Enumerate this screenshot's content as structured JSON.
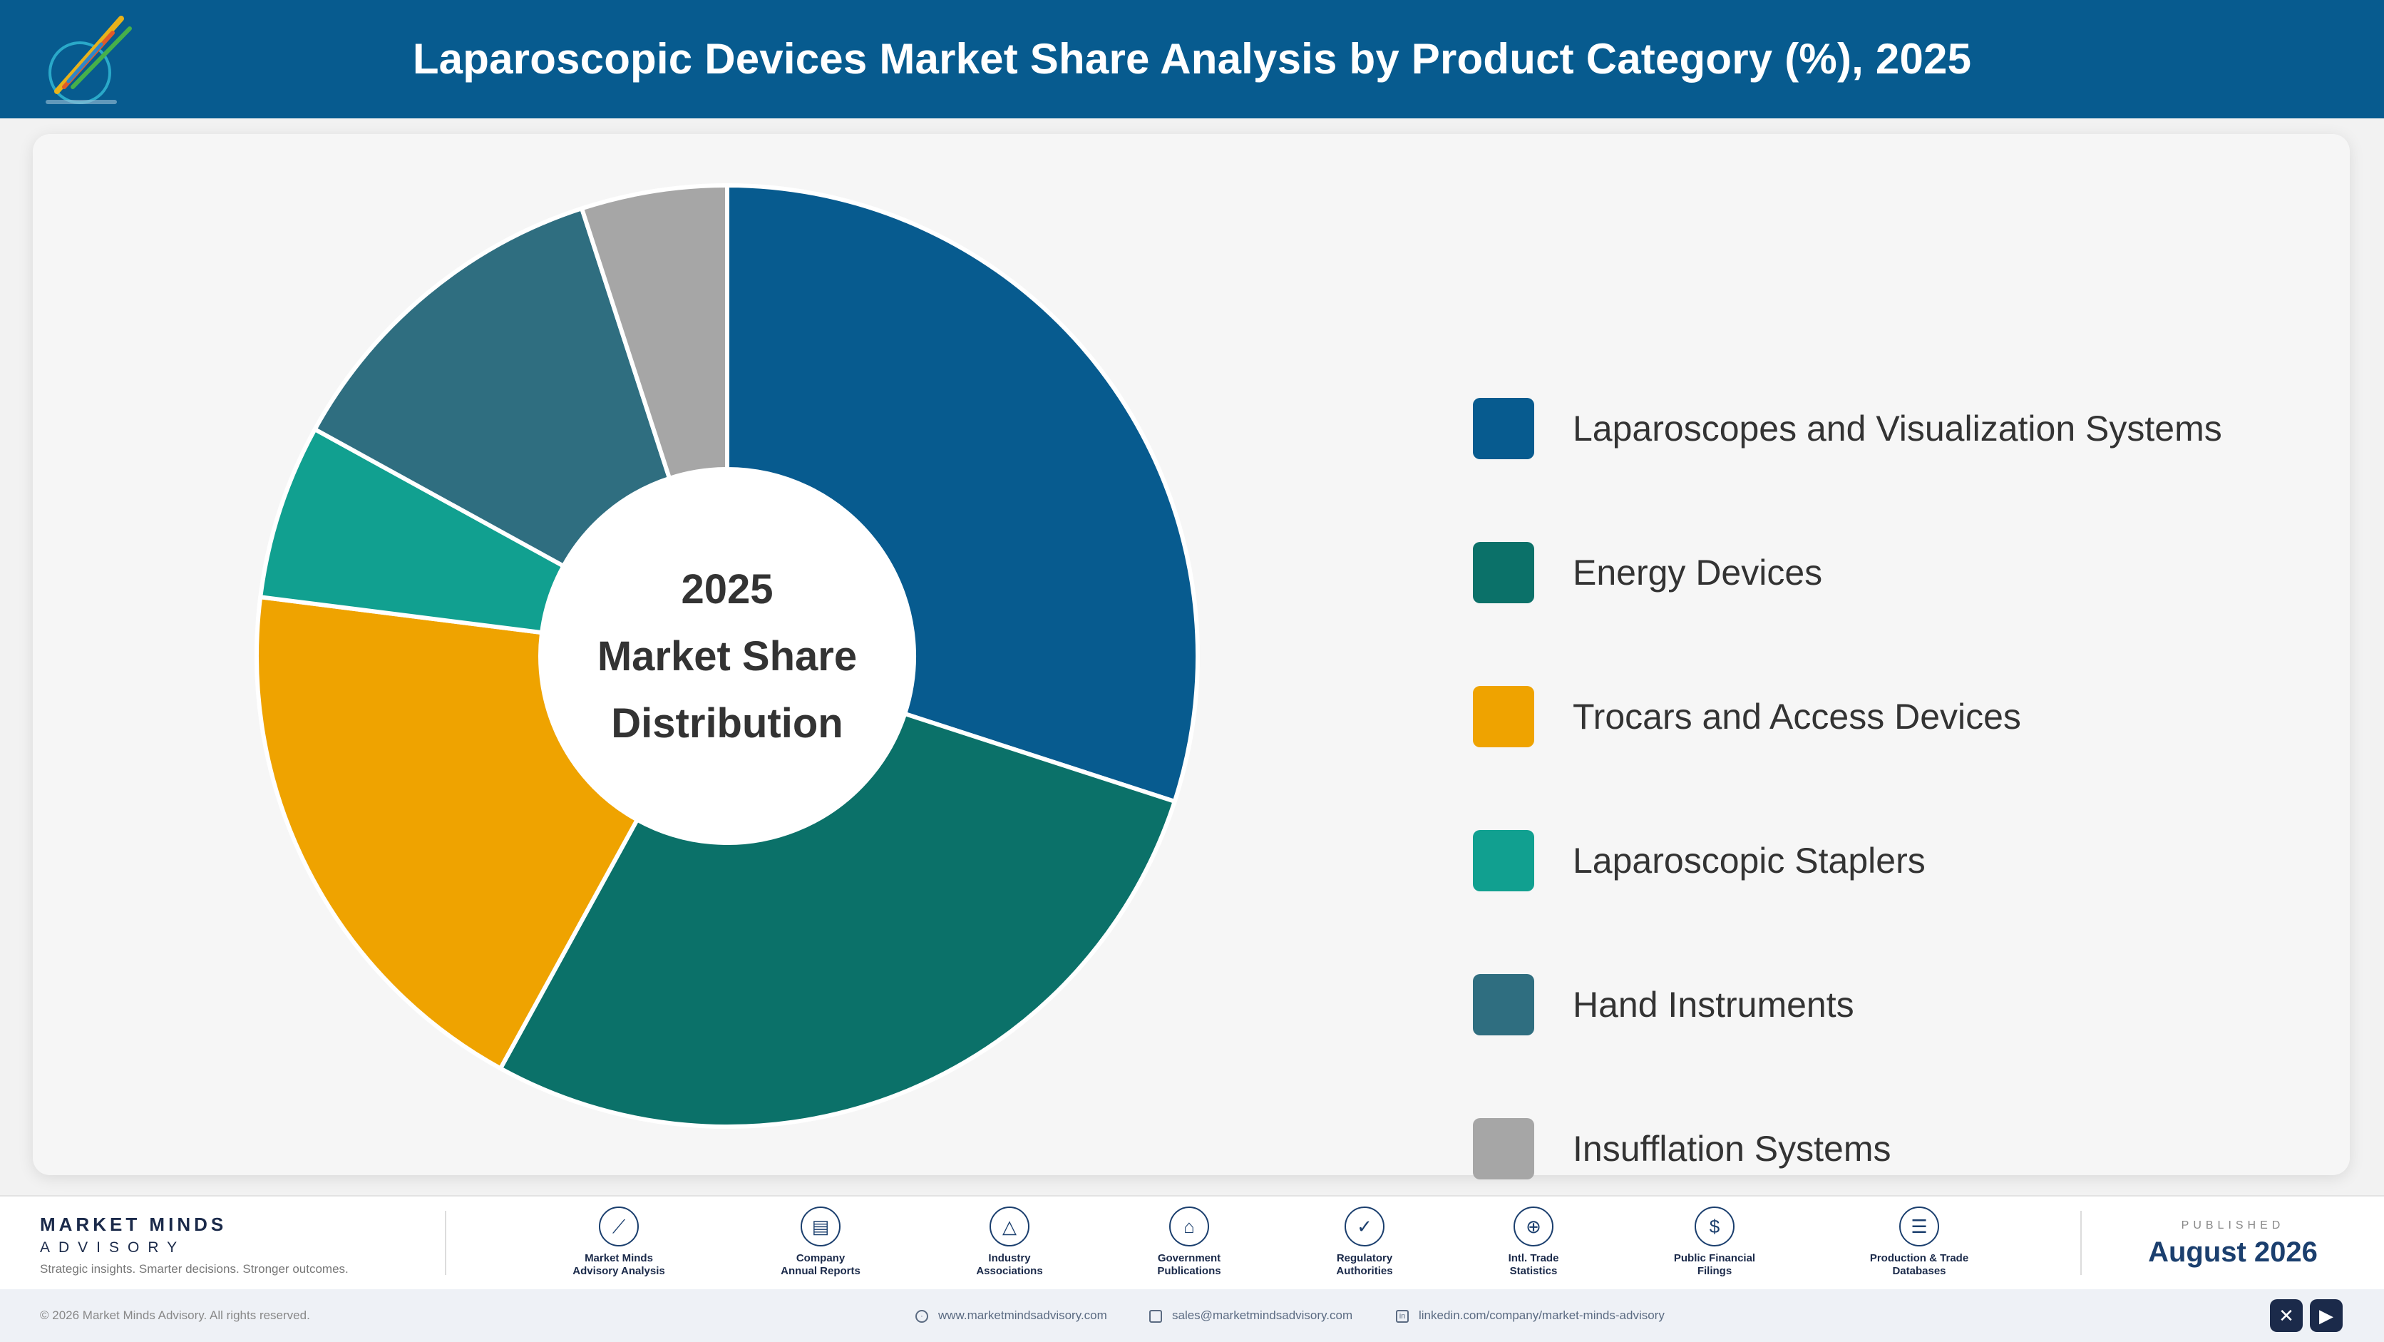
{
  "header": {
    "title": "Laparoscopic Devices Market Share Analysis by Product Category (%), 2025",
    "background": "#075b8f"
  },
  "chart_data": {
    "type": "pie",
    "variant": "donut",
    "title": "Laparoscopic Devices Market Share Analysis by Product Category (%), 2025",
    "center_text": [
      "2025",
      "Market Share",
      "Distribution"
    ],
    "series": [
      {
        "name": "Laparoscopes and Visualization Systems",
        "value": 30,
        "color": "#075b8f"
      },
      {
        "name": "Energy Devices",
        "value": 28,
        "color": "#0b7169"
      },
      {
        "name": "Trocars and Access Devices",
        "value": 19,
        "color": "#efa300"
      },
      {
        "name": "Laparoscopic Staplers",
        "value": 6,
        "color": "#11a090"
      },
      {
        "name": "Hand Instruments",
        "value": 12,
        "color": "#2f6e80"
      },
      {
        "name": "Insufflation Systems",
        "value": 5,
        "color": "#a6a6a6"
      }
    ],
    "legend_position": "right"
  },
  "footer": {
    "brand": {
      "name": "MARKET MINDS",
      "sub": "ADVISORY",
      "tagline": "Strategic insights. Smarter decisions. Stronger outcomes."
    },
    "sources": [
      {
        "label": "Market Minds\nAdvisory Analysis",
        "icon": "chart-line-icon",
        "glyph": "⟋"
      },
      {
        "label": "Company\nAnnual Reports",
        "icon": "document-icon",
        "glyph": "▤"
      },
      {
        "label": "Industry\nAssociations",
        "icon": "network-icon",
        "glyph": "△"
      },
      {
        "label": "Government\nPublications",
        "icon": "building-icon",
        "glyph": "⌂"
      },
      {
        "label": "Regulatory\nAuthorities",
        "icon": "shield-icon",
        "glyph": "✓"
      },
      {
        "label": "Intl. Trade\nStatistics",
        "icon": "globe-icon",
        "glyph": "⊕"
      },
      {
        "label": "Public Financial\nFilings",
        "icon": "dollar-icon",
        "glyph": "$"
      },
      {
        "label": "Production & Trade\nDatabases",
        "icon": "database-icon",
        "glyph": "☰"
      }
    ],
    "published_label": "PUBLISHED",
    "published_date": "August 2026"
  },
  "bottom_bar": {
    "copyright": "© 2026 Market Minds Advisory. All rights reserved.",
    "website": "www.marketmindsadvisory.com",
    "email": "sales@marketmindsadvisory.com",
    "linkedin": "linkedin.com/company/market-minds-advisory",
    "social": [
      {
        "icon": "x-twitter-icon",
        "glyph": "✕"
      },
      {
        "icon": "youtube-icon",
        "glyph": "▶"
      }
    ]
  }
}
